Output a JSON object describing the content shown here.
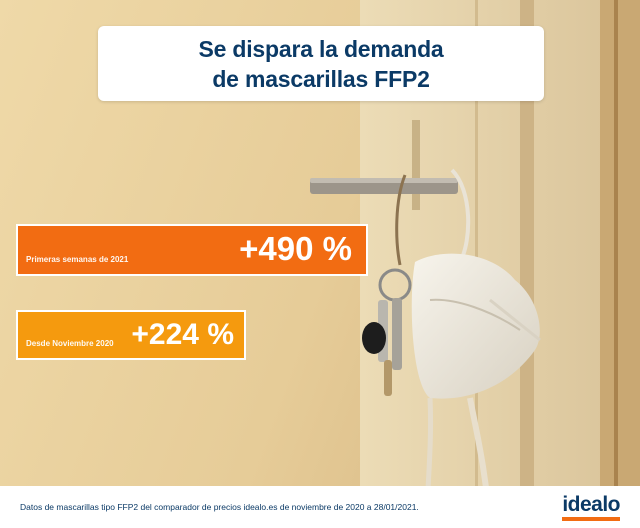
{
  "title": {
    "line1": "Se dispara la demanda",
    "line2": "de mascarillas FFP2"
  },
  "chart_data": {
    "type": "bar",
    "categories": [
      "Primeras semanas de 2021",
      "Desde Noviembre 2020"
    ],
    "values": [
      490,
      224
    ],
    "value_labels": [
      "+490 %",
      "+224 %"
    ],
    "title": "Se dispara la demanda de mascarillas FFP2",
    "xlabel": "",
    "ylabel": "",
    "colors": [
      "#f26c12",
      "#f59a0e"
    ]
  },
  "footer": {
    "source": "Datos de mascarillas tipo FFP2 del comparador de precios idealo.es de noviembre de 2020 a 28/01/2021.",
    "logo": "idealo"
  },
  "colors": {
    "brand_navy": "#0b3a66",
    "brand_orange": "#f26c12",
    "light_orange": "#f59a0e"
  }
}
